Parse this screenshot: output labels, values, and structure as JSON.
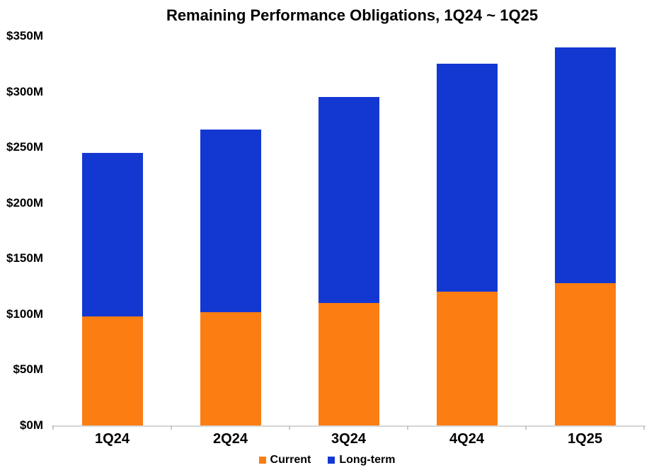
{
  "chart_data": {
    "type": "bar",
    "stacked": true,
    "title": "Remaining Performance Obligations, 1Q24 ~ 1Q25",
    "categories": [
      "1Q24",
      "2Q24",
      "3Q24",
      "4Q24",
      "1Q25"
    ],
    "series": [
      {
        "name": "Current",
        "color": "#fc7d12",
        "values": [
          98,
          102,
          110,
          120,
          128
        ]
      },
      {
        "name": "Long-term",
        "color": "#1338d2",
        "values": [
          147,
          164,
          185,
          205,
          212
        ]
      }
    ],
    "stacked_totals": [
      245,
      266,
      295,
      325,
      340
    ],
    "xlabel": "",
    "ylabel": "",
    "ylim": [
      0,
      350
    ],
    "ytick_step": 50,
    "ytick_labels": [
      "$0M",
      "$50M",
      "$100M",
      "$150M",
      "$200M",
      "$250M",
      "$300M",
      "$350M"
    ],
    "grid": false,
    "legend_position": "bottom",
    "axis_color": "#d6d6d6",
    "text_color": "#000000",
    "background_color": "#ffffff"
  }
}
